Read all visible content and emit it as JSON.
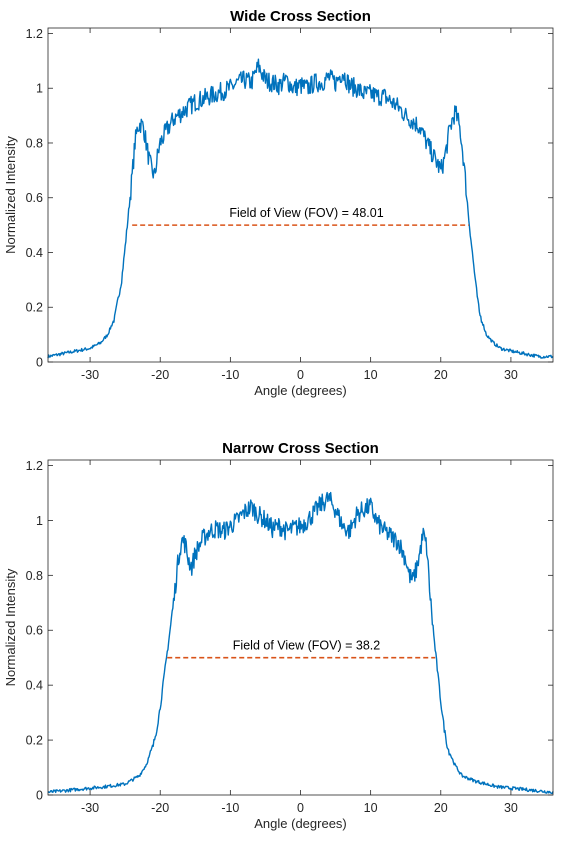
{
  "chart_data": [
    {
      "type": "line",
      "title": "Wide Cross Section",
      "xlabel": "Angle (degrees)",
      "ylabel": "Normalized Intensity",
      "xlim": [
        -36,
        36
      ],
      "ylim": [
        0,
        1.22
      ],
      "xticks": [
        -30,
        -20,
        -10,
        0,
        10,
        20,
        30
      ],
      "xtick_labels": [
        "-30",
        "-20",
        "-10",
        "0",
        "10",
        "20",
        "30"
      ],
      "yticks": [
        0,
        0.2,
        0.4,
        0.6,
        0.8,
        1,
        1.2
      ],
      "ytick_labels": [
        "0",
        "0.2",
        "0.4",
        "0.6",
        "0.8",
        "1",
        "1.2"
      ],
      "grid": false,
      "series_color": "#0072BD",
      "fov_color": "#D95319",
      "series": [
        {
          "x": [
            -36,
            -34,
            -32,
            -30,
            -28.5,
            -27.5,
            -26.5,
            -25.5,
            -25,
            -24.5,
            -24,
            -23.6,
            -23.2,
            -22.8,
            -22.4,
            -22,
            -21.6,
            -21.2,
            -20.8,
            -20.4,
            -20,
            -19,
            -18,
            -17,
            -16,
            -15,
            -14,
            -13,
            -12,
            -11,
            -10,
            -9,
            -8,
            -7,
            -6,
            -5,
            -4,
            -3,
            -2,
            -1,
            0,
            1,
            2,
            3,
            4,
            5,
            6,
            7,
            8,
            9,
            10,
            11,
            12,
            13,
            14,
            15,
            16,
            17,
            18,
            19,
            20,
            20.4,
            20.8,
            21.2,
            21.6,
            22,
            22.4,
            22.8,
            23.2,
            23.6,
            24,
            24.5,
            25,
            25.5,
            26.5,
            27.5,
            28.5,
            30,
            32,
            34,
            36
          ],
          "y": [
            0.02,
            0.03,
            0.04,
            0.05,
            0.07,
            0.1,
            0.16,
            0.3,
            0.42,
            0.55,
            0.68,
            0.8,
            0.86,
            0.87,
            0.86,
            0.8,
            0.74,
            0.7,
            0.68,
            0.75,
            0.8,
            0.85,
            0.89,
            0.91,
            0.93,
            0.95,
            0.96,
            0.97,
            0.98,
            0.99,
            1.0,
            1.02,
            1.03,
            1.02,
            1.08,
            1.03,
            1.02,
            1.01,
            1.03,
            1.0,
            1.01,
            1.0,
            1.02,
            1.02,
            1.04,
            1.02,
            1.06,
            1.01,
            1.0,
            0.98,
            0.98,
            0.97,
            0.97,
            0.95,
            0.93,
            0.9,
            0.88,
            0.86,
            0.8,
            0.75,
            0.7,
            0.73,
            0.78,
            0.84,
            0.88,
            0.91,
            0.89,
            0.84,
            0.75,
            0.64,
            0.52,
            0.4,
            0.28,
            0.18,
            0.1,
            0.07,
            0.05,
            0.04,
            0.03,
            0.02,
            0.02
          ]
        }
      ],
      "fov_line": {
        "x": [
          -24.0,
          24.01
        ],
        "y": 0.5
      },
      "annotation": {
        "text": "Field of View (FOV) = 48.01",
        "x": 0,
        "y": 0.53
      }
    },
    {
      "type": "line",
      "title": "Narrow Cross Section",
      "xlabel": "Angle (degrees)",
      "ylabel": "Normalized Intensity",
      "xlim": [
        -36,
        36
      ],
      "ylim": [
        0,
        1.22
      ],
      "xticks": [
        -30,
        -20,
        -10,
        0,
        10,
        20,
        30
      ],
      "xtick_labels": [
        "-30",
        "-20",
        "-10",
        "0",
        "10",
        "20",
        "30"
      ],
      "yticks": [
        0,
        0.2,
        0.4,
        0.6,
        0.8,
        1,
        1.2
      ],
      "ytick_labels": [
        "0",
        "0.2",
        "0.4",
        "0.6",
        "0.8",
        "1",
        "1.2"
      ],
      "grid": false,
      "series_color": "#0072BD",
      "fov_color": "#D95319",
      "series": [
        {
          "x": [
            -36,
            -32,
            -28,
            -25,
            -23,
            -22,
            -21,
            -20.5,
            -20,
            -19.5,
            -19,
            -18.5,
            -18,
            -17.6,
            -17.2,
            -16.8,
            -16.4,
            -16,
            -15.5,
            -15,
            -14,
            -13,
            -12,
            -11,
            -10,
            -9,
            -8,
            -7,
            -6,
            -5,
            -4,
            -3,
            -2,
            -1,
            0,
            1,
            2,
            3,
            4,
            5,
            6,
            7,
            8,
            9,
            10,
            11,
            12,
            13,
            14,
            15,
            15.5,
            16,
            16.5,
            17,
            17.5,
            18,
            18.5,
            19,
            19.5,
            20,
            20.5,
            21,
            22,
            23,
            25,
            28,
            32,
            36
          ],
          "y": [
            0.01,
            0.02,
            0.03,
            0.04,
            0.07,
            0.11,
            0.18,
            0.24,
            0.32,
            0.42,
            0.52,
            0.62,
            0.72,
            0.82,
            0.9,
            0.93,
            0.91,
            0.86,
            0.83,
            0.88,
            0.93,
            0.96,
            0.97,
            0.96,
            0.98,
            1.0,
            1.03,
            1.05,
            1.02,
            1.0,
            0.97,
            0.98,
            0.96,
            0.97,
            0.98,
            1.0,
            1.03,
            1.06,
            1.08,
            1.04,
            0.98,
            0.96,
            1.02,
            1.04,
            1.05,
            0.99,
            0.96,
            0.94,
            0.92,
            0.86,
            0.8,
            0.78,
            0.82,
            0.88,
            0.95,
            0.9,
            0.72,
            0.58,
            0.46,
            0.34,
            0.24,
            0.17,
            0.11,
            0.07,
            0.05,
            0.03,
            0.02,
            0.01
          ]
        }
      ],
      "fov_line": {
        "x": [
          -19.0,
          19.2
        ],
        "y": 0.5
      },
      "annotation": {
        "text": "Field of View (FOV) = 38.2",
        "x": 0,
        "y": 0.53
      }
    }
  ]
}
